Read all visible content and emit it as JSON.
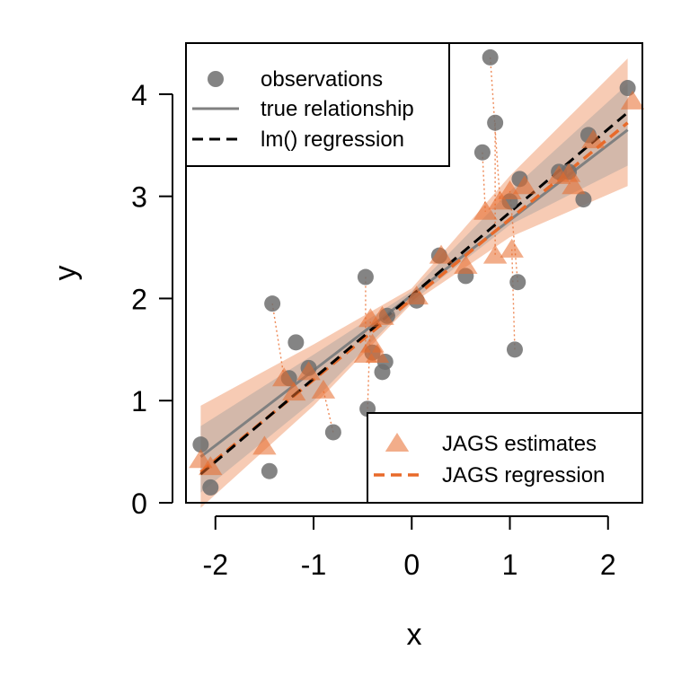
{
  "chart_data": {
    "type": "scatter",
    "title": "",
    "xlabel": "x",
    "ylabel": "y",
    "xlim": [
      -2.3,
      2.35
    ],
    "ylim": [
      0,
      4.5
    ],
    "xticks": [
      -2,
      -1,
      0,
      1,
      2
    ],
    "xtick_labels": [
      "-2",
      "-1",
      "0",
      "1",
      "2"
    ],
    "yticks": [
      0,
      1,
      2,
      3,
      4
    ],
    "ytick_labels": [
      "0",
      "1",
      "2",
      "3",
      "4"
    ],
    "grid": false,
    "colors": {
      "observations": "#6e6e6e",
      "true_line": "#808080",
      "lm_line": "#000000",
      "jags": "#e86a2a",
      "band_light": "#f2a882",
      "band_grey": "#b0a6a0"
    },
    "legend_top": {
      "placement": "top-left",
      "entries": [
        {
          "label": "observations",
          "marker": "circle"
        },
        {
          "label": "true relationship",
          "marker": "solid-line"
        },
        {
          "label": "lm() regression",
          "marker": "dashed-line"
        }
      ]
    },
    "legend_bottom": {
      "placement": "bottom-right",
      "entries": [
        {
          "label": "JAGS estimates",
          "marker": "triangle"
        },
        {
          "label": "JAGS regression",
          "marker": "dashed-line"
        }
      ]
    },
    "true_relationship": {
      "x": [
        -2.15,
        2.2
      ],
      "y": [
        0.45,
        3.65
      ]
    },
    "lm_regression": {
      "x": [
        -2.15,
        2.2
      ],
      "y": [
        0.28,
        3.82
      ]
    },
    "jags_regression": {
      "x": [
        -2.15,
        2.2
      ],
      "y": [
        0.3,
        3.72
      ]
    },
    "band_outer": {
      "x": [
        -2.15,
        -1.0,
        0.0,
        1.0,
        2.2
      ],
      "lower": [
        -0.05,
        0.95,
        1.95,
        2.6,
        3.1
      ],
      "upper": [
        0.95,
        1.55,
        2.1,
        3.2,
        4.35
      ]
    },
    "band_inner": {
      "x": [
        -2.15,
        -1.0,
        0.0,
        1.0,
        2.2
      ],
      "lower": [
        0.1,
        1.0,
        1.97,
        2.72,
        3.3
      ],
      "upper": [
        0.75,
        1.45,
        2.07,
        3.05,
        4.1
      ]
    },
    "observations": [
      {
        "x": -2.15,
        "y": 0.57
      },
      {
        "x": -2.05,
        "y": 0.15
      },
      {
        "x": -1.45,
        "y": 0.31
      },
      {
        "x": -1.42,
        "y": 1.95
      },
      {
        "x": -1.25,
        "y": 1.22
      },
      {
        "x": -1.18,
        "y": 1.57
      },
      {
        "x": -1.05,
        "y": 1.32
      },
      {
        "x": -0.8,
        "y": 0.69
      },
      {
        "x": -0.47,
        "y": 2.21
      },
      {
        "x": -0.45,
        "y": 0.92
      },
      {
        "x": -0.4,
        "y": 1.47
      },
      {
        "x": -0.3,
        "y": 1.28
      },
      {
        "x": -0.27,
        "y": 1.38
      },
      {
        "x": -0.25,
        "y": 1.83
      },
      {
        "x": 0.05,
        "y": 1.98
      },
      {
        "x": 0.28,
        "y": 2.42
      },
      {
        "x": 0.55,
        "y": 2.22
      },
      {
        "x": 0.72,
        "y": 3.43
      },
      {
        "x": 0.8,
        "y": 4.36
      },
      {
        "x": 0.85,
        "y": 3.72
      },
      {
        "x": 1.0,
        "y": 2.95
      },
      {
        "x": 1.05,
        "y": 1.5
      },
      {
        "x": 1.08,
        "y": 2.16
      },
      {
        "x": 1.1,
        "y": 3.17
      },
      {
        "x": 1.5,
        "y": 3.24
      },
      {
        "x": 1.6,
        "y": 3.24
      },
      {
        "x": 1.75,
        "y": 2.97
      },
      {
        "x": 1.8,
        "y": 3.6
      },
      {
        "x": 2.2,
        "y": 4.06
      }
    ],
    "jags_estimates": [
      {
        "x": -2.15,
        "y": 0.42
      },
      {
        "x": -2.05,
        "y": 0.35
      },
      {
        "x": -1.5,
        "y": 0.55
      },
      {
        "x": -1.3,
        "y": 1.22
      },
      {
        "x": -1.2,
        "y": 1.08
      },
      {
        "x": -1.05,
        "y": 1.28
      },
      {
        "x": -0.9,
        "y": 1.1
      },
      {
        "x": -0.47,
        "y": 1.45
      },
      {
        "x": -0.42,
        "y": 1.8
      },
      {
        "x": -0.4,
        "y": 1.55
      },
      {
        "x": -0.35,
        "y": 1.45
      },
      {
        "x": -0.3,
        "y": 1.82
      },
      {
        "x": 0.05,
        "y": 2.02
      },
      {
        "x": 0.3,
        "y": 2.42
      },
      {
        "x": 0.55,
        "y": 2.32
      },
      {
        "x": 0.75,
        "y": 2.85
      },
      {
        "x": 0.85,
        "y": 2.42
      },
      {
        "x": 0.9,
        "y": 2.95
      },
      {
        "x": 1.0,
        "y": 3.05
      },
      {
        "x": 1.02,
        "y": 2.48
      },
      {
        "x": 1.15,
        "y": 3.1
      },
      {
        "x": 1.5,
        "y": 3.2
      },
      {
        "x": 1.6,
        "y": 3.22
      },
      {
        "x": 1.65,
        "y": 3.1
      },
      {
        "x": 1.85,
        "y": 3.55
      },
      {
        "x": 2.25,
        "y": 3.93
      }
    ],
    "connectors": [
      {
        "x1": -1.42,
        "y1": 1.95,
        "x2": -1.3,
        "y2": 1.22
      },
      {
        "x1": -0.8,
        "y1": 0.69,
        "x2": -0.9,
        "y2": 1.1
      },
      {
        "x1": -0.47,
        "y1": 2.21,
        "x2": -0.47,
        "y2": 1.45
      },
      {
        "x1": -0.45,
        "y1": 0.92,
        "x2": -0.42,
        "y2": 1.8
      },
      {
        "x1": 0.72,
        "y1": 3.43,
        "x2": 0.75,
        "y2": 2.85
      },
      {
        "x1": 0.8,
        "y1": 4.36,
        "x2": 0.9,
        "y2": 2.95
      },
      {
        "x1": 0.85,
        "y1": 3.72,
        "x2": 0.85,
        "y2": 2.42
      },
      {
        "x1": 1.05,
        "y1": 1.5,
        "x2": 1.02,
        "y2": 2.48
      },
      {
        "x1": 1.08,
        "y1": 2.16,
        "x2": 1.0,
        "y2": 3.05
      }
    ]
  }
}
